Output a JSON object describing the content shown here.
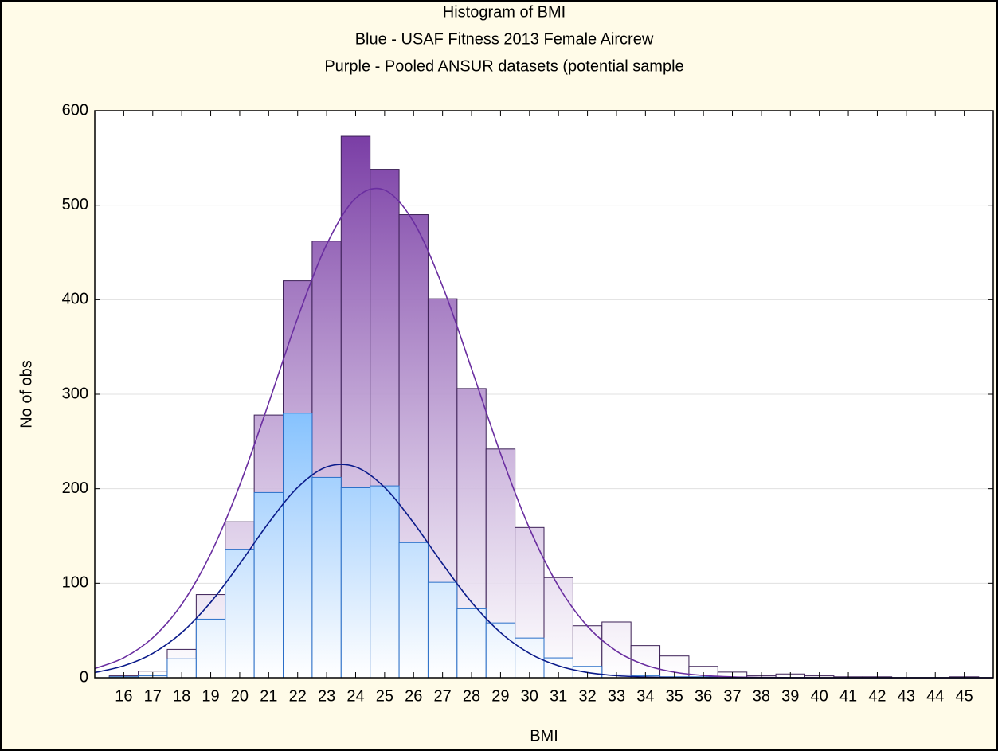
{
  "chart_data": {
    "type": "histogram",
    "title": "Histogram of BMI",
    "subtitle": [
      "Blue - USAF Fitness 2013 Female Aircrew",
      "Purple - Pooled ANSUR datasets (potential sample"
    ],
    "xlabel": "BMI",
    "ylabel": "No of obs",
    "bins": [
      15.5,
      16.5,
      17.5,
      18.5,
      19.5,
      20.5,
      21.5,
      22.5,
      23.5,
      24.5,
      25.5,
      26.5,
      27.5,
      28.5,
      29.5,
      30.5,
      31.5,
      32.5,
      33.5,
      34.5,
      35.5,
      36.5,
      37.5,
      38.5,
      39.5,
      40.5,
      41.5,
      42.5,
      43.5,
      44.5,
      45.5
    ],
    "series": [
      {
        "color": "#7b3fa6",
        "values": [
          2,
          7,
          30,
          88,
          165,
          278,
          420,
          462,
          573,
          538,
          490,
          401,
          306,
          242,
          159,
          106,
          55,
          59,
          34,
          23,
          12,
          6,
          2,
          4,
          2,
          1,
          1,
          0,
          0,
          1
        ]
      },
      {
        "color": "#6fb8ff",
        "values": [
          1,
          2,
          20,
          62,
          136,
          196,
          280,
          212,
          201,
          203,
          143,
          101,
          73,
          58,
          42,
          21,
          12,
          3,
          2,
          1,
          1,
          0,
          0,
          0,
          0,
          0,
          0,
          0,
          0,
          0
        ]
      }
    ],
    "curves": [
      {
        "color": "#6a2ea0",
        "x": [
          15,
          16,
          17,
          18,
          19,
          20,
          21,
          22,
          23,
          24,
          25,
          26,
          27,
          28,
          29,
          30,
          31,
          32,
          33,
          34,
          35,
          36,
          37,
          38,
          39,
          40,
          41,
          42,
          43,
          44,
          45,
          46
        ],
        "values": [
          9.7,
          21.1,
          42.3,
          77.7,
          131.3,
          203.7,
          290.6,
          380.7,
          458.4,
          507.4,
          516.0,
          482.3,
          414.3,
          327.0,
          237.2,
          158.0,
          96.8,
          54.5,
          28.2,
          13.4,
          5.9,
          2.4,
          0.9,
          0.3,
          0.1,
          0,
          0,
          0,
          0,
          0,
          0,
          0
        ]
      },
      {
        "color": "#0a1a8a",
        "x": [
          15,
          16,
          17,
          18,
          19,
          20,
          21,
          22,
          23,
          24,
          25,
          26,
          27,
          28,
          29,
          30,
          31,
          32,
          33,
          34,
          35,
          36,
          37,
          38,
          39,
          40,
          41,
          42,
          43,
          44,
          45,
          46
        ],
        "values": [
          5.5,
          12.6,
          25.8,
          47.8,
          79.9,
          120.5,
          163.9,
          201.4,
          223.1,
          223.1,
          201.4,
          163.9,
          120.5,
          79.9,
          47.8,
          25.8,
          12.6,
          5.5,
          2.2,
          0.8,
          0.3,
          0.1,
          0,
          0,
          0,
          0,
          0,
          0,
          0,
          0,
          0,
          0
        ]
      }
    ],
    "xlim": [
      15,
      46
    ],
    "xticks": [
      16,
      17,
      18,
      19,
      20,
      21,
      22,
      23,
      24,
      25,
      26,
      27,
      28,
      29,
      30,
      31,
      32,
      33,
      34,
      35,
      36,
      37,
      38,
      39,
      40,
      41,
      42,
      43,
      44,
      45
    ],
    "ylim": [
      0,
      600
    ],
    "yticks": [
      0,
      100,
      200,
      300,
      400,
      500,
      600
    ],
    "grid": true
  }
}
